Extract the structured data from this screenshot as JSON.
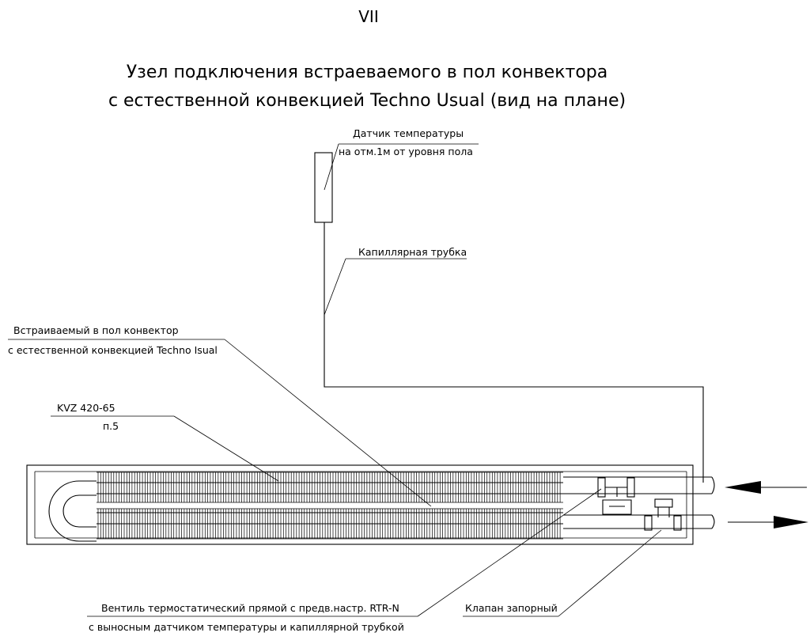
{
  "sheet_number": "VII",
  "title": {
    "line1": "Узел подключения встраеваемого в пол конвектора",
    "line2": "с естественной конвекцией Techno Usual (вид на плане)"
  },
  "labels": {
    "sensor_line1": "Датчик температуры",
    "sensor_line2": "на отм.1м от уровня пола",
    "capillary": "Капиллярная трубка",
    "convector_line1": "Встраиваемый в пол конвектор",
    "convector_line2": "с естественной конвекцией Techno Isual",
    "model_line1": "KVZ 420-65",
    "model_line2": "п.5",
    "valve_line1": "Вентиль термостатический прямой с предв.настр. RTR-N",
    "valve_line2": "с выносным датчиком температуры и капиллярной трубкой",
    "shutoff": "Клапан запорный"
  },
  "icons": {
    "inlet_arrow": "arrow-left-icon",
    "outlet_arrow": "arrow-right-icon"
  }
}
